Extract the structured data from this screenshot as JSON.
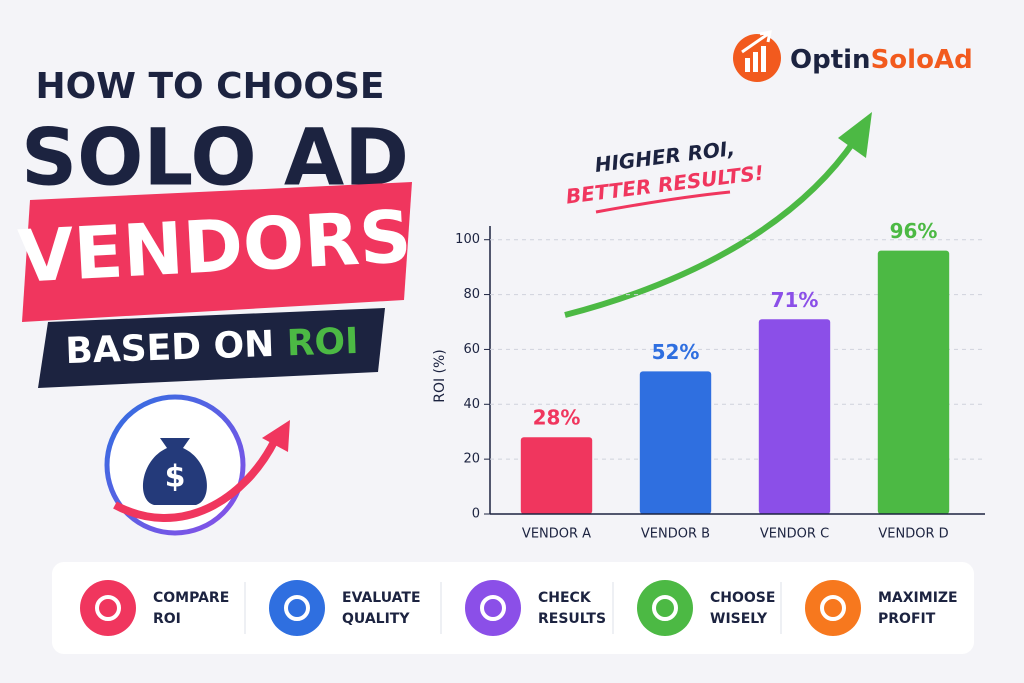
{
  "logo": {
    "part1": "Optin",
    "part2": "SoloAd"
  },
  "headline": {
    "line1": "HOW TO CHOOSE",
    "line2": "SOLO AD",
    "line3": "VENDORS",
    "line4a": "BASED ON",
    "line4b": "ROI"
  },
  "annotation": {
    "line1": "HIGHER ROI,",
    "line2": "BETTER RESULTS!"
  },
  "chart_data": {
    "type": "bar",
    "ylabel": "ROI (%)",
    "categories": [
      "VENDOR A",
      "VENDOR B",
      "VENDOR C",
      "VENDOR D"
    ],
    "values": [
      28,
      52,
      71,
      96
    ],
    "value_labels": [
      "28%",
      "52%",
      "71%",
      "96%"
    ],
    "colors": [
      "#f0365e",
      "#2f6fe0",
      "#8b4fe8",
      "#4cb944"
    ],
    "ylim": [
      0,
      105
    ],
    "yticks": [
      0,
      20,
      40,
      60,
      80,
      100
    ],
    "grid": true
  },
  "steps": [
    {
      "line1": "COMPARE",
      "line2": "ROI",
      "color": "#f0365e"
    },
    {
      "line1": "EVALUATE",
      "line2": "QUALITY",
      "color": "#2f6fe0"
    },
    {
      "line1": "CHECK",
      "line2": "RESULTS",
      "color": "#8b4fe8"
    },
    {
      "line1": "CHOOSE",
      "line2": "WISELY",
      "color": "#4cb944"
    },
    {
      "line1": "MAXIMIZE",
      "line2": "PROFIT",
      "color": "#f7781e"
    }
  ]
}
